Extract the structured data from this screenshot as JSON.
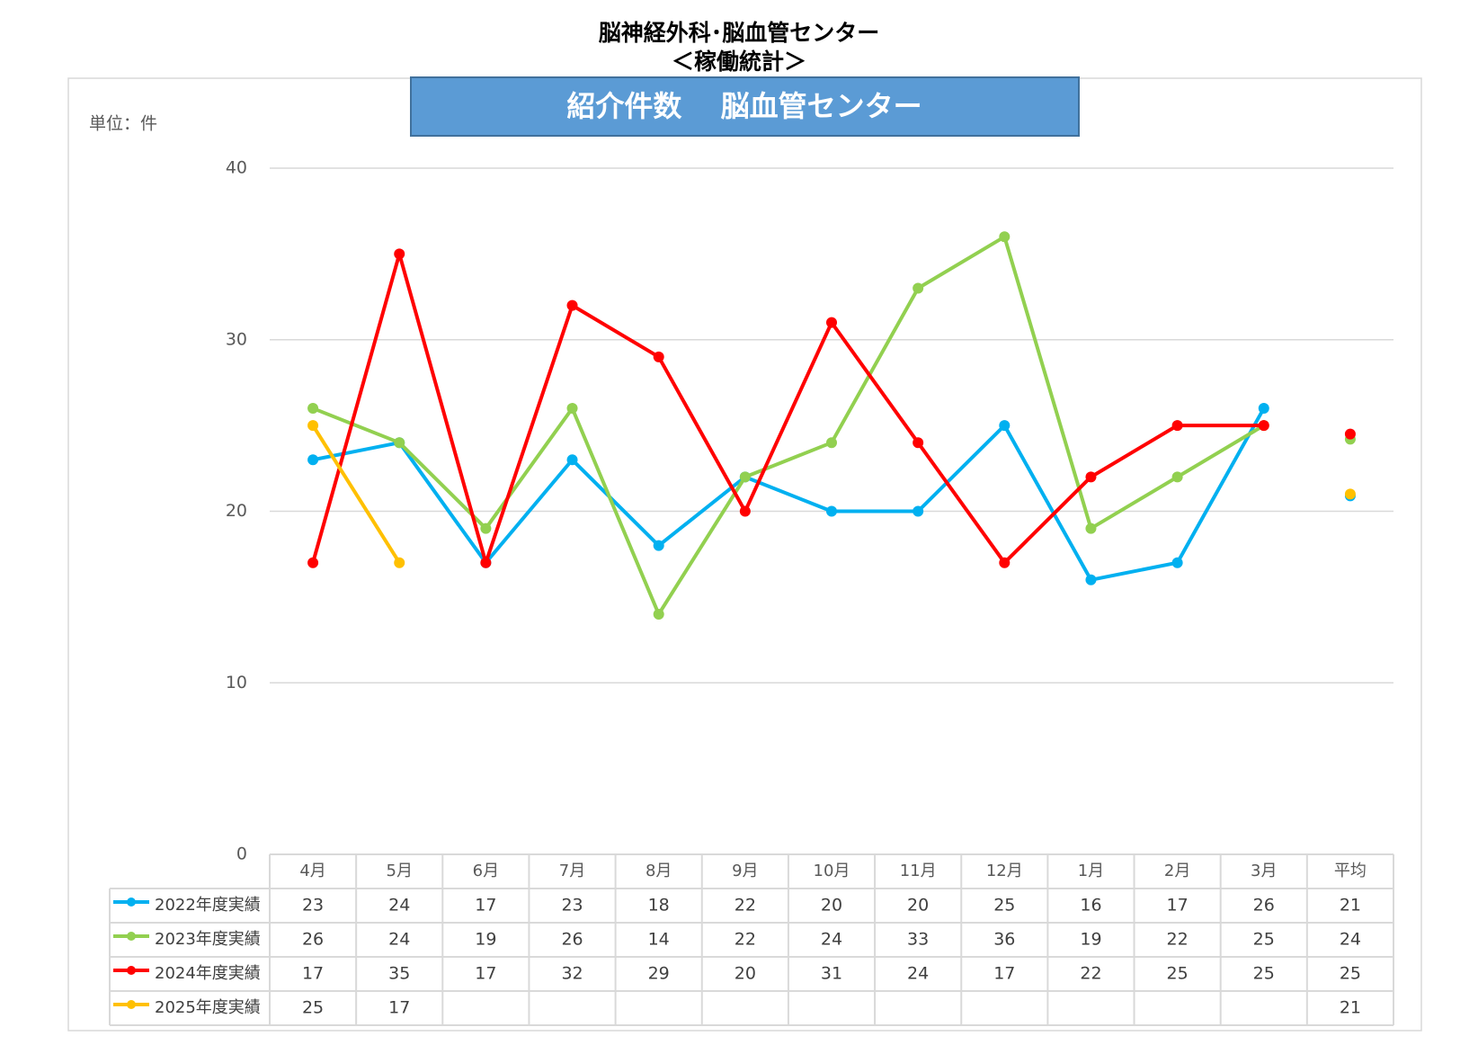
{
  "chart_data": {
    "type": "line",
    "title": "脳神経外科･脳血管センター",
    "subtitle": "＜稼働統計＞",
    "chart_title": "紹介件数　 脳血管センター",
    "unit_label": "単位：件",
    "categories": [
      "4月",
      "5月",
      "6月",
      "7月",
      "8月",
      "9月",
      "10月",
      "11月",
      "12月",
      "1月",
      "2月",
      "3月"
    ],
    "average_header": "平均",
    "ylim": [
      0,
      40
    ],
    "yticks": [
      0,
      10,
      20,
      30,
      40
    ],
    "grid": true,
    "series": [
      {
        "name": "2022年度実績",
        "color": "#00b0f0",
        "values": [
          23,
          24,
          17,
          23,
          18,
          22,
          20,
          20,
          25,
          16,
          17,
          26
        ],
        "average": 20.9,
        "average_label": "21"
      },
      {
        "name": "2023年度実績",
        "color": "#92d050",
        "values": [
          26,
          24,
          19,
          26,
          14,
          22,
          24,
          33,
          36,
          19,
          22,
          25
        ],
        "average": 24.2,
        "average_label": "24"
      },
      {
        "name": "2024年度実績",
        "color": "#ff0000",
        "values": [
          17,
          35,
          17,
          32,
          29,
          20,
          31,
          24,
          17,
          22,
          25,
          25
        ],
        "average": 24.5,
        "average_label": "25"
      },
      {
        "name": "2025年度実績",
        "color": "#ffc000",
        "values": [
          25,
          17,
          null,
          null,
          null,
          null,
          null,
          null,
          null,
          null,
          null,
          null
        ],
        "average": 21,
        "average_label": "21"
      }
    ]
  }
}
